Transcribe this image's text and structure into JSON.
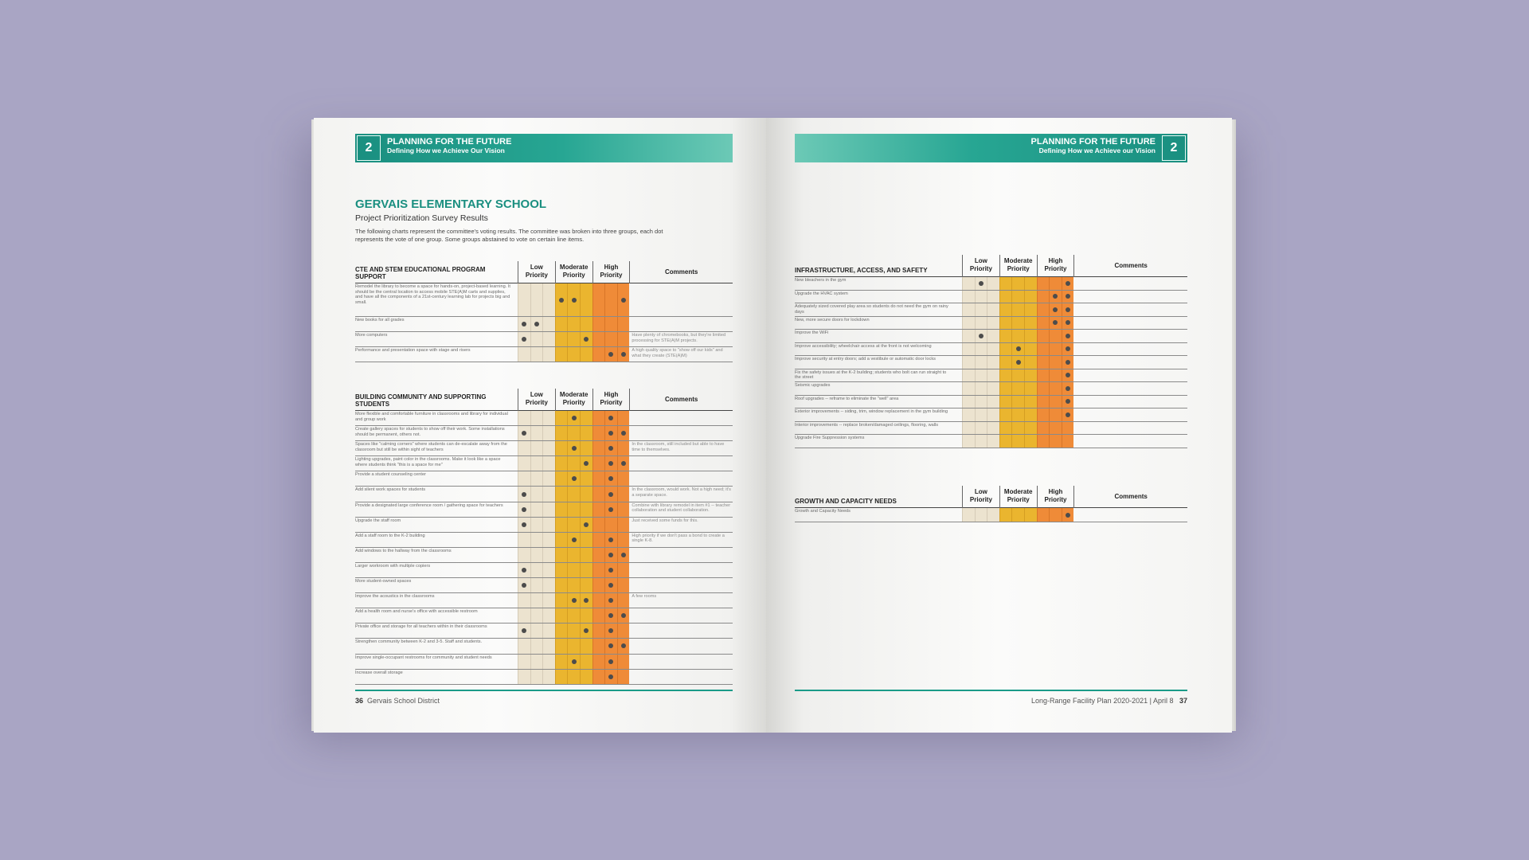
{
  "banner": {
    "number": "2",
    "title": "PLANNING FOR THE FUTURE",
    "subtitle_left": "Defining How we Achieve Our Vision",
    "subtitle_right": "Defining How we Achieve our Vision"
  },
  "left_page": {
    "school_title": "GERVAIS ELEMENTARY SCHOOL",
    "school_subtitle": "Project Prioritization Survey Results",
    "intro": "The following charts represent the committee's voting results. The committee was broken into three groups, each dot represents the vote of one group. Some groups abstained to vote on certain line items.",
    "footer_page": "36",
    "footer_text": "Gervais School District"
  },
  "right_page": {
    "footer_text": "Long-Range Facility Plan  2020-2021 | April 8",
    "footer_page": "37"
  },
  "columns": {
    "low": "Low Priority",
    "moderate": "Moderate Priority",
    "high": "High Priority",
    "comments": "Comments"
  },
  "colors": {
    "low": "#ece3cf",
    "moderate": "#eab52f",
    "high": "#ef8b38",
    "teal": "#1a8f80",
    "background": "#a9a5c4"
  },
  "tables": [
    {
      "id": "cte",
      "title": "CTE AND STEM EDUCATIONAL PROGRAM SUPPORT",
      "rows": [
        {
          "label": "Remodel the library to become a space for hands-on, project-based learning. It should be the central location to access mobile STE(A)M carts and supplies, and have all the components of a 21st-century learning lab for projects big and small.",
          "dots": [
            0,
            0,
            0,
            1,
            1,
            0,
            0,
            0,
            1
          ],
          "comment": ""
        },
        {
          "label": "New books for all grades",
          "dots": [
            1,
            1,
            0,
            0,
            0,
            0,
            0,
            0,
            0
          ],
          "comment": ""
        },
        {
          "label": "More computers",
          "dots": [
            1,
            0,
            0,
            0,
            0,
            1,
            0,
            0,
            0
          ],
          "comment": "Have plenty of chromebooks, but they're limited processing for STE(A)M projects."
        },
        {
          "label": "Performance and presentation space with stage and risers",
          "dots": [
            0,
            0,
            0,
            0,
            0,
            0,
            0,
            1,
            1
          ],
          "comment": "A high quality space to \"show off our kids\" and what they create (STE(A)M)"
        }
      ]
    },
    {
      "id": "community",
      "title": "BUILDING COMMUNITY AND SUPPORTING STUDENTS",
      "rows": [
        {
          "label": "More flexible and comfortable furniture in classrooms and library for individual and group work",
          "dots": [
            0,
            0,
            0,
            0,
            1,
            0,
            0,
            1,
            0
          ],
          "comment": ""
        },
        {
          "label": "Create gallery spaces for students to show off their work. Some installations should be permanent, others not.",
          "dots": [
            1,
            0,
            0,
            0,
            0,
            0,
            0,
            1,
            1
          ],
          "comment": ""
        },
        {
          "label": "Spaces like \"calming corners\" where students can de-escalate away from the classroom but still be within sight of teachers",
          "dots": [
            0,
            0,
            0,
            0,
            1,
            0,
            0,
            1,
            0
          ],
          "comment": "In the classroom, still included but able to have time to themselves."
        },
        {
          "label": "Lighting upgrades, paint color in the classrooms. Make it look like a space where students think \"this is a space for me\"",
          "dots": [
            0,
            0,
            0,
            0,
            0,
            1,
            0,
            1,
            1
          ],
          "comment": ""
        },
        {
          "label": "Provide a student counseling center",
          "dots": [
            0,
            0,
            0,
            0,
            1,
            0,
            0,
            1,
            0
          ],
          "comment": ""
        },
        {
          "label": "Add silent work spaces for students",
          "dots": [
            1,
            0,
            0,
            0,
            0,
            0,
            0,
            1,
            0
          ],
          "comment": "In the classroom, would work. Not a high need; it's a separate space."
        },
        {
          "label": "Provide a designated large conference room / gathering space for teachers",
          "dots": [
            1,
            0,
            0,
            0,
            0,
            0,
            0,
            1,
            0
          ],
          "comment": "Combine with library remodel in item #1 -- teacher collaboration and student collaboration."
        },
        {
          "label": "Upgrade the staff room",
          "dots": [
            1,
            0,
            0,
            0,
            0,
            1,
            0,
            0,
            0
          ],
          "comment": "Just received some funds for this."
        },
        {
          "label": "Add a staff room to the K-2 building",
          "dots": [
            0,
            0,
            0,
            0,
            1,
            0,
            0,
            1,
            0
          ],
          "comment": "High priority if we don't pass a bond to create a single K-8."
        },
        {
          "label": "Add windows to the hallway from the classrooms",
          "dots": [
            0,
            0,
            0,
            0,
            0,
            0,
            0,
            1,
            1
          ],
          "comment": ""
        },
        {
          "label": "Larger workroom with multiple copiers",
          "dots": [
            1,
            0,
            0,
            0,
            0,
            0,
            0,
            1,
            0
          ],
          "comment": ""
        },
        {
          "label": "More student-owned spaces",
          "dots": [
            1,
            0,
            0,
            0,
            0,
            0,
            0,
            1,
            0
          ],
          "comment": ""
        },
        {
          "label": "Improve the acoustics in the classrooms",
          "dots": [
            0,
            0,
            0,
            0,
            1,
            1,
            0,
            1,
            0
          ],
          "comment": "A few rooms"
        },
        {
          "label": "Add a health room and nurse's office with accessible restroom",
          "dots": [
            0,
            0,
            0,
            0,
            0,
            0,
            0,
            1,
            1
          ],
          "comment": ""
        },
        {
          "label": "Private office and storage for all teachers within in their classrooms",
          "dots": [
            1,
            0,
            0,
            0,
            0,
            1,
            0,
            1,
            0
          ],
          "comment": ""
        },
        {
          "label": "Strengthen community between K-2 and 3-5. Staff and students.",
          "dots": [
            0,
            0,
            0,
            0,
            0,
            0,
            0,
            1,
            1
          ],
          "comment": ""
        },
        {
          "label": "Improve single-occupant restrooms for community and student needs",
          "dots": [
            0,
            0,
            0,
            0,
            1,
            0,
            0,
            1,
            0
          ],
          "comment": ""
        },
        {
          "label": "Increase overall storage",
          "dots": [
            0,
            0,
            0,
            0,
            0,
            0,
            0,
            1,
            0
          ],
          "comment": ""
        }
      ]
    },
    {
      "id": "infra",
      "title": "INFRASTRUCTURE, ACCESS, AND SAFETY",
      "rows": [
        {
          "label": "New bleachers in the gym",
          "dots": [
            0,
            1,
            0,
            0,
            0,
            0,
            0,
            0,
            1
          ],
          "comment": ""
        },
        {
          "label": "Upgrade the HVAC system",
          "dots": [
            0,
            0,
            0,
            0,
            0,
            0,
            0,
            1,
            1
          ],
          "comment": ""
        },
        {
          "label": "Adequately sized covered play area so students do not need the gym on rainy days",
          "dots": [
            0,
            0,
            0,
            0,
            0,
            0,
            0,
            1,
            1
          ],
          "comment": ""
        },
        {
          "label": "New, more secure doors for lockdown",
          "dots": [
            0,
            0,
            0,
            0,
            0,
            0,
            0,
            1,
            1
          ],
          "comment": ""
        },
        {
          "label": "Improve the WiFi",
          "dots": [
            0,
            1,
            0,
            0,
            0,
            0,
            0,
            0,
            1
          ],
          "comment": ""
        },
        {
          "label": "Improve accessibility; wheelchair access at the front is not welcoming",
          "dots": [
            0,
            0,
            0,
            0,
            1,
            0,
            0,
            0,
            1
          ],
          "comment": ""
        },
        {
          "label": "Improve security at entry doors; add a vestibule or automatic door locks",
          "dots": [
            0,
            0,
            0,
            0,
            1,
            0,
            0,
            0,
            1
          ],
          "comment": ""
        },
        {
          "label": "Fix the safety issues at the K-2 building; students who bolt can run straight to the street",
          "dots": [
            0,
            0,
            0,
            0,
            0,
            0,
            0,
            0,
            1
          ],
          "comment": ""
        },
        {
          "label": "Seismic upgrades",
          "dots": [
            0,
            0,
            0,
            0,
            0,
            0,
            0,
            0,
            1
          ],
          "comment": ""
        },
        {
          "label": "Roof upgrades -- reframe to eliminate the \"well\" area",
          "dots": [
            0,
            0,
            0,
            0,
            0,
            0,
            0,
            0,
            1
          ],
          "comment": ""
        },
        {
          "label": "Exterior improvements -- siding, trim, window replacement in the gym building",
          "dots": [
            0,
            0,
            0,
            0,
            0,
            0,
            0,
            0,
            1
          ],
          "comment": ""
        },
        {
          "label": "Interior improvements -- replace broken/damaged ceilings, flooring, walls",
          "dots": [
            0,
            0,
            0,
            0,
            0,
            0,
            0,
            0,
            0
          ],
          "comment": ""
        },
        {
          "label": "Upgrade Fire Suppression systems",
          "dots": [
            0,
            0,
            0,
            0,
            0,
            0,
            0,
            0,
            0
          ],
          "comment": ""
        }
      ]
    },
    {
      "id": "growth",
      "title": "GROWTH AND CAPACITY NEEDS",
      "rows": [
        {
          "label": "Growth and Capacity Needs",
          "dots": [
            0,
            0,
            0,
            0,
            0,
            0,
            0,
            0,
            1
          ],
          "comment": ""
        }
      ]
    }
  ]
}
